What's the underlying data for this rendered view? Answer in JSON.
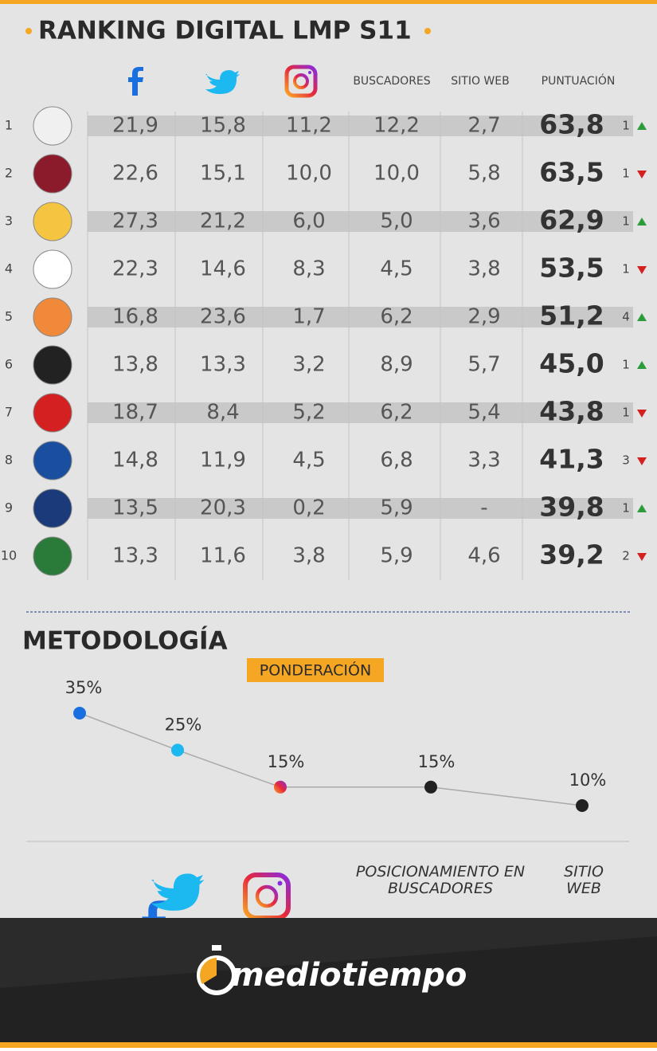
{
  "header": {
    "title": "RANKING DIGITAL LMP S11"
  },
  "table": {
    "columns": [
      "BUSCADORES",
      "SITIO WEB",
      "PUNTUACIÓN"
    ],
    "rows": [
      {
        "rank": "1",
        "cells": [
          "21,9",
          "15,8",
          "11,2",
          "12,2",
          "2,7"
        ],
        "score": "63,8",
        "change": "1",
        "direction": "up"
      },
      {
        "rank": "2",
        "cells": [
          "22,6",
          "15,1",
          "10,0",
          "10,0",
          "5,8"
        ],
        "score": "63,5",
        "change": "1",
        "direction": "down"
      },
      {
        "rank": "3",
        "cells": [
          "27,3",
          "21,2",
          "6,0",
          "5,0",
          "3,6"
        ],
        "score": "62,9",
        "change": "1",
        "direction": "up"
      },
      {
        "rank": "4",
        "cells": [
          "22,3",
          "14,6",
          "8,3",
          "4,5",
          "3,8"
        ],
        "score": "53,5",
        "change": "1",
        "direction": "down"
      },
      {
        "rank": "5",
        "cells": [
          "16,8",
          "23,6",
          "1,7",
          "6,2",
          "2,9"
        ],
        "score": "51,2",
        "change": "4",
        "direction": "up"
      },
      {
        "rank": "6",
        "cells": [
          "13,8",
          "13,3",
          "3,2",
          "8,9",
          "5,7"
        ],
        "score": "45,0",
        "change": "1",
        "direction": "up"
      },
      {
        "rank": "7",
        "cells": [
          "18,7",
          "8,4",
          "5,2",
          "6,2",
          "5,4"
        ],
        "score": "43,8",
        "change": "1",
        "direction": "down"
      },
      {
        "rank": "8",
        "cells": [
          "14,8",
          "11,9",
          "4,5",
          "6,8",
          "3,3"
        ],
        "score": "41,3",
        "change": "3",
        "direction": "down"
      },
      {
        "rank": "9",
        "cells": [
          "13,5",
          "20,3",
          "0,2",
          "5,9",
          "-"
        ],
        "score": "39,8",
        "change": "1",
        "direction": "up"
      },
      {
        "rank": "10",
        "cells": [
          "13,3",
          "11,6",
          "3,8",
          "5,9",
          "4,6"
        ],
        "score": "39,2",
        "change": "2",
        "direction": "down"
      }
    ]
  },
  "methodology": {
    "title": "METODOLOGÍA",
    "subtitle": "PONDERACIÓN",
    "values": [
      35,
      25,
      15,
      15,
      10
    ],
    "value_labels": [
      "35%",
      "25%",
      "15%",
      "15%",
      "10%"
    ],
    "colors": [
      "#1a6fe0",
      "#1cb8f0",
      "#e8402a",
      "#222222",
      "#222222"
    ],
    "labels": [
      "POSICIONAMIENTO EN BUSCADORES",
      "SITIO WEB"
    ]
  },
  "footer": {
    "brand": "mediotiempo"
  }
}
